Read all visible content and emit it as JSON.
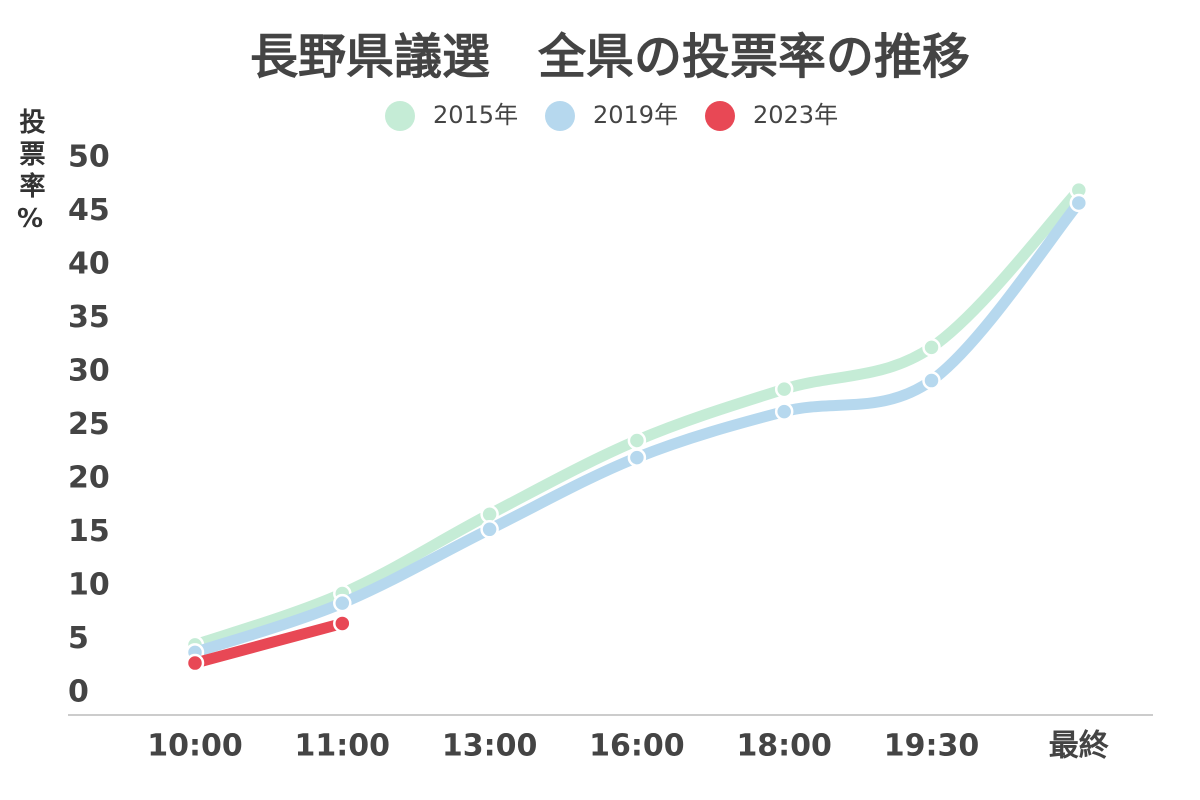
{
  "chart_data": {
    "type": "line",
    "title": "長野県議選　全県の投票率の推移",
    "y_label": "投票率%",
    "categories": [
      "10:00",
      "11:00",
      "13:00",
      "16:00",
      "18:00",
      "19:30",
      "最終"
    ],
    "series": [
      {
        "name": "2015年",
        "color": "#c5ecd6",
        "values": [
          4.5,
          9.3,
          16.7,
          23.6,
          28.4,
          32.3,
          47.0
        ]
      },
      {
        "name": "2019年",
        "color": "#b6d8ee",
        "values": [
          3.8,
          8.4,
          15.3,
          22.0,
          26.3,
          29.2,
          45.8
        ]
      },
      {
        "name": "2023年",
        "color": "#e84855",
        "values": [
          2.8,
          6.5,
          null,
          null,
          null,
          null,
          null
        ]
      }
    ],
    "ylim": [
      0,
      50
    ],
    "yticks": [
      0,
      5,
      10,
      15,
      20,
      25,
      30,
      35,
      40,
      45,
      50
    ],
    "grid": false,
    "legend": "top"
  }
}
